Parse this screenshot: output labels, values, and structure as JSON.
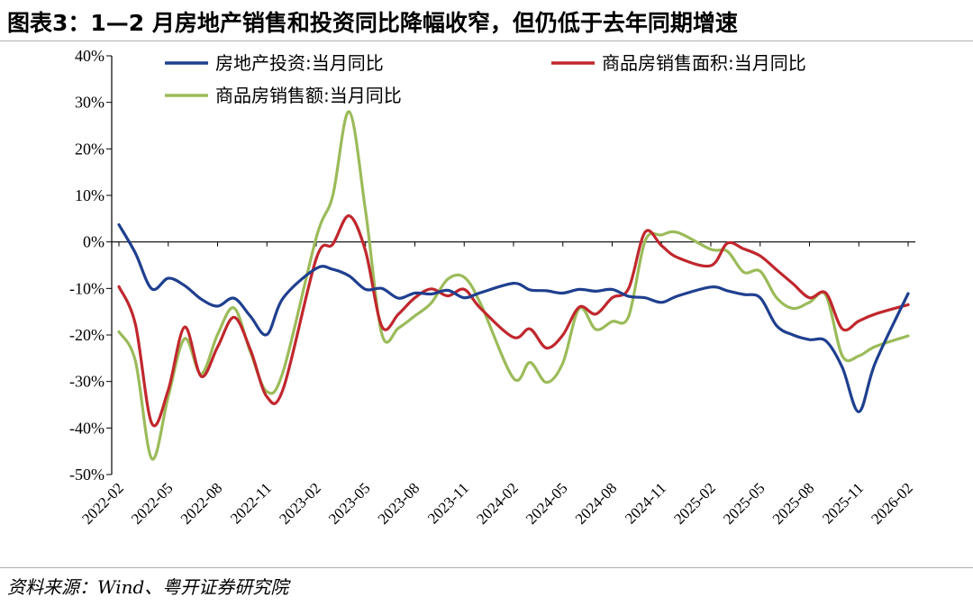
{
  "header": {
    "title": "图表3：1—2 月房地产销售和投资同比降幅收窄，但仍低于去年同期增速"
  },
  "footer": {
    "source": "资料来源：Wind、粤开证券研究院"
  },
  "chart_data": {
    "type": "line",
    "title": "图表3：1—2 月房地产销售和投资同比降幅收窄，但仍低于去年同期增速",
    "xlabel": "",
    "ylabel": "",
    "ylim": [
      -50,
      40
    ],
    "ytick_values": [
      40,
      30,
      20,
      10,
      0,
      -10,
      -20,
      -30,
      -40,
      -50
    ],
    "ytick_labels": [
      "40%",
      "30%",
      "20%",
      "10%",
      "0%",
      "-10%",
      "-20%",
      "-30%",
      "-40%",
      "-50%"
    ],
    "xtick_labels": [
      "2022-02",
      "2022-05",
      "2022-08",
      "2022-11",
      "2023-02",
      "2023-05",
      "2023-08",
      "2023-11",
      "2024-02",
      "2024-05",
      "2024-08",
      "2024-11",
      "2025-02",
      "2025-05",
      "2025-08",
      "2025-11",
      "2026-02"
    ],
    "x": [
      "2022-02",
      "2022-03",
      "2022-04",
      "2022-05",
      "2022-06",
      "2022-07",
      "2022-08",
      "2022-09",
      "2022-10",
      "2022-11",
      "2022-12",
      "2023-02",
      "2023-03",
      "2023-04",
      "2023-05",
      "2023-06",
      "2023-07",
      "2023-08",
      "2023-09",
      "2023-10",
      "2023-11",
      "2023-12",
      "2024-02",
      "2024-03",
      "2024-04",
      "2024-05",
      "2024-06",
      "2024-07",
      "2024-08",
      "2024-09",
      "2024-10",
      "2024-11",
      "2024-12",
      "2025-02",
      "2025-03",
      "2025-04",
      "2025-05",
      "2025-06",
      "2025-07",
      "2025-08",
      "2025-09",
      "2025-10",
      "2025-11",
      "2025-12",
      "2026-02"
    ],
    "grid": false,
    "legend_position": "top",
    "series": [
      {
        "name": "房地产投资:当月同比",
        "color": "#1f3f8f",
        "values": [
          3.7,
          -2.4,
          -10.1,
          -7.8,
          -9.4,
          -12.3,
          -13.8,
          -12.1,
          -16.0,
          -19.9,
          -12.0,
          -5.7,
          -5.9,
          -7.3,
          -10.2,
          -10.0,
          -12.1,
          -11.0,
          -11.2,
          -10.4,
          -12.0,
          -10.9,
          -8.9,
          -10.3,
          -10.5,
          -11.0,
          -10.2,
          -10.6,
          -10.2,
          -11.7,
          -12.0,
          -13.0,
          -11.6,
          -9.7,
          -10.5,
          -11.3,
          -12.0,
          -18.0,
          -20.0,
          -21.0,
          -21.3,
          -27.0,
          -36.5,
          -26.0,
          -11.1
        ]
      },
      {
        "name": "商品房销售面积:当月同比",
        "color": "#c0272d",
        "values": [
          -9.6,
          -17.7,
          -39.0,
          -31.8,
          -18.3,
          -28.9,
          -22.6,
          -16.2,
          -23.2,
          -33.3,
          -31.5,
          -3.6,
          -0.5,
          5.6,
          -2.0,
          -18.2,
          -15.5,
          -12.0,
          -10.1,
          -11.6,
          -10.2,
          -14.3,
          -20.5,
          -18.7,
          -22.8,
          -20.0,
          -14.0,
          -15.5,
          -12.0,
          -10.0,
          2.1,
          -0.8,
          -3.4,
          -5.1,
          -0.3,
          -1.5,
          -3.0,
          -6.0,
          -9.0,
          -12.0,
          -11.0,
          -18.7,
          -17.0,
          -15.5,
          -13.5
        ]
      },
      {
        "name": "商品房销售额:当月同比",
        "color": "#9bbb59",
        "values": [
          -19.3,
          -25.6,
          -46.6,
          -33.2,
          -20.8,
          -28.4,
          -19.9,
          -14.2,
          -23.7,
          -32.2,
          -27.7,
          0.9,
          9.9,
          28.0,
          6.6,
          -19.9,
          -18.5,
          -15.9,
          -13.1,
          -8.0,
          -7.6,
          -13.3,
          -29.3,
          -25.9,
          -30.2,
          -26.0,
          -14.3,
          -18.8,
          -17.1,
          -16.0,
          0.2,
          1.5,
          2.0,
          -1.6,
          -2.0,
          -6.5,
          -6.3,
          -12.0,
          -14.3,
          -13.0,
          -11.5,
          -24.5,
          -24.5,
          -22.5,
          -20.2
        ]
      }
    ]
  }
}
